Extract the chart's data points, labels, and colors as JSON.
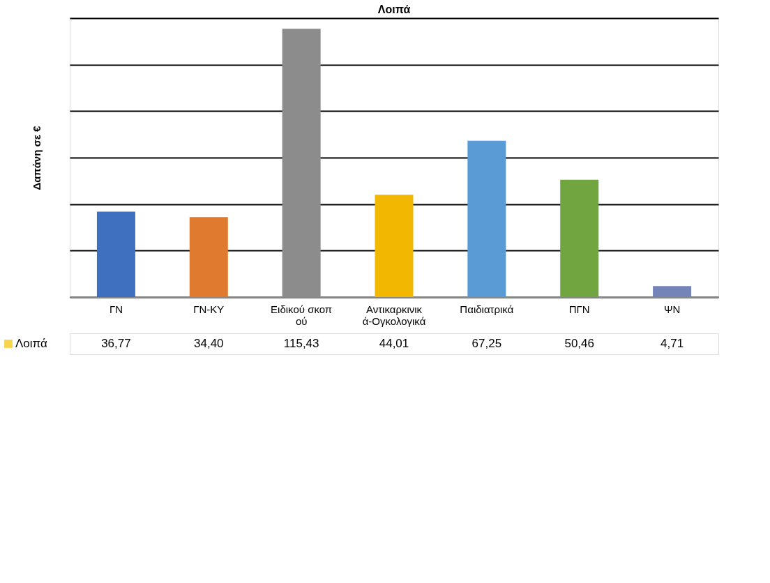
{
  "chart_data": {
    "type": "bar",
    "title": "Λοιπά",
    "ylabel": "Δαπάνη σε €",
    "categories": [
      "ΓΝ",
      "ΓΝ-ΚΥ",
      "Ειδικού σκοπού",
      "Αντικαρκινικά-Ογκολογικά",
      "Παιδιατρικά",
      "ΠΓΝ",
      "ΨΝ"
    ],
    "series": [
      {
        "name": "Λοιπά",
        "color": "#f5c000",
        "colors": [
          "#3f6fbf",
          "#e07a2e",
          "#8c8c8c",
          "#f2b700",
          "#5b9bd5",
          "#70a53f",
          "#7483b8"
        ],
        "values": [
          36.77,
          34.4,
          115.43,
          44.01,
          67.25,
          50.46,
          4.71
        ],
        "value_labels": [
          "36,77",
          "34,40",
          "115,43",
          "44,01",
          "67,25",
          "50,46",
          "4,71"
        ]
      }
    ],
    "ylim": [
      0,
      120
    ],
    "yticks": [
      {
        "value": 0,
        "label": null
      },
      {
        "value": 20,
        "label": null
      },
      {
        "value": 40,
        "label": null
      },
      {
        "value": 60,
        "label": null
      },
      {
        "value": 80,
        "label": null
      },
      {
        "value": 100,
        "label": null
      },
      {
        "value": 120,
        "label": null
      }
    ],
    "grid": "y",
    "legend": "bottom left"
  }
}
